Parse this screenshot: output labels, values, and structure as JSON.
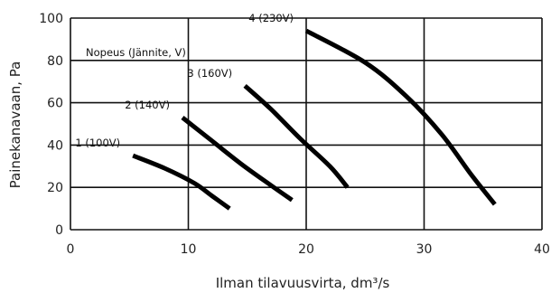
{
  "chart_data": {
    "type": "line",
    "title": "",
    "xlabel": "Ilman tilavuusvirta, dm³/s",
    "ylabel": "Painekanavaan, Pa",
    "xlim": [
      0,
      40
    ],
    "ylim": [
      0,
      100
    ],
    "xticks": [
      0,
      10,
      20,
      30,
      40
    ],
    "yticks": [
      0,
      20,
      40,
      60,
      80,
      100
    ],
    "grid": true,
    "legend_title": "Nopeus (Jännite, V)",
    "series": [
      {
        "name": "1 (100V)",
        "x": [
          5.3,
          8,
          10.5,
          12,
          13.5
        ],
        "y": [
          35,
          29,
          22,
          16,
          10
        ]
      },
      {
        "name": "2 (140V)",
        "x": [
          9.5,
          12,
          14.5,
          17,
          18.8
        ],
        "y": [
          53,
          42,
          31,
          21,
          14
        ]
      },
      {
        "name": "3 (160V)",
        "x": [
          14.8,
          17,
          19.5,
          22,
          23.5
        ],
        "y": [
          68,
          57,
          43,
          30,
          20
        ]
      },
      {
        "name": "4 (230V)",
        "x": [
          20,
          25,
          28.5,
          31.5,
          34,
          36
        ],
        "y": [
          94,
          79,
          63,
          45,
          26,
          12
        ]
      }
    ]
  }
}
